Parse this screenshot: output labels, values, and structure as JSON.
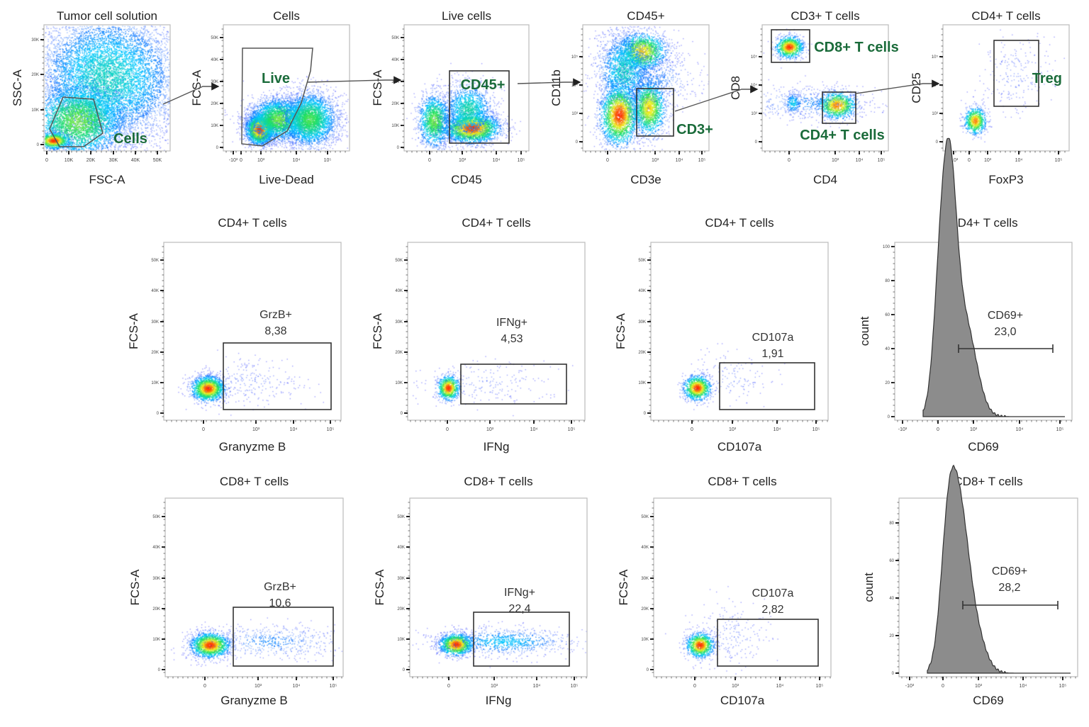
{
  "chart_data": [
    {
      "type": "scatter",
      "title": "Tumor cell solution",
      "xlabel": "FSC-A",
      "ylabel": "SSC-A",
      "xticks": [
        "0",
        "10K",
        "20K",
        "30K",
        "40K",
        "50K"
      ],
      "yticks": [
        "0",
        "10K",
        "20K",
        "30K"
      ],
      "gates": [
        {
          "label": "Cells"
        }
      ]
    },
    {
      "type": "scatter",
      "title": "Cells",
      "xlabel": "Live-Dead",
      "ylabel": "FCS-A",
      "xticks": [
        "-10³",
        "0",
        "10³",
        "10⁴",
        "10⁵"
      ],
      "yticks": [
        "0",
        "10K",
        "20K",
        "30K",
        "40K",
        "50K"
      ],
      "gates": [
        {
          "label": "Live"
        }
      ]
    },
    {
      "type": "scatter",
      "title": "Live cells",
      "xlabel": "CD45",
      "ylabel": "FCS-A",
      "xticks": [
        "0",
        "10³",
        "10⁴",
        "10⁵"
      ],
      "yticks": [
        "0",
        "10K",
        "20K",
        "30K",
        "40K",
        "50K"
      ],
      "gates": [
        {
          "label": "CD45+"
        }
      ]
    },
    {
      "type": "scatter",
      "title": "CD45+",
      "xlabel": "CD3e",
      "ylabel": "CD11b",
      "xticks": [
        "0",
        "10³",
        "10⁴",
        "10⁵"
      ],
      "yticks": [
        "0",
        "10³",
        "10⁴",
        "10⁵"
      ],
      "gates": [
        {
          "label": "CD3+"
        }
      ]
    },
    {
      "type": "scatter",
      "title": "CD3+ T cells",
      "xlabel": "CD4",
      "ylabel": "CD8",
      "xticks": [
        "0",
        "10³",
        "10⁴",
        "10⁵"
      ],
      "yticks": [
        "0",
        "10³",
        "10⁴",
        "10⁵"
      ],
      "gates": [
        {
          "label": "CD8+ T cells"
        },
        {
          "label": "CD4+ T cells"
        }
      ]
    },
    {
      "type": "scatter",
      "title": "CD4+ T cells",
      "xlabel": "FoxP3",
      "ylabel": "CD25",
      "xticks": [
        "-10³",
        "0",
        "10³",
        "10⁴",
        "10⁵"
      ],
      "yticks": [
        "0",
        "10³",
        "10⁴",
        "10⁵"
      ],
      "gates": [
        {
          "label": "Treg"
        }
      ]
    },
    {
      "type": "scatter",
      "title": "CD4+ T cells",
      "xlabel": "Granyzme B",
      "ylabel": "FCS-A",
      "xticks": [
        "0",
        "10³",
        "10⁴",
        "10⁵"
      ],
      "yticks": [
        "0",
        "10K",
        "20K",
        "30K",
        "40K",
        "50K"
      ],
      "gates": [
        {
          "label": "GrzB+",
          "value": "8,38"
        }
      ]
    },
    {
      "type": "scatter",
      "title": "CD4+ T cells",
      "xlabel": "IFNg",
      "ylabel": "FCS-A",
      "xticks": [
        "0",
        "10³",
        "10⁴",
        "10⁵"
      ],
      "yticks": [
        "0",
        "10K",
        "20K",
        "30K",
        "40K",
        "50K"
      ],
      "gates": [
        {
          "label": "IFNg+",
          "value": "4,53"
        }
      ]
    },
    {
      "type": "scatter",
      "title": "CD4+ T cells",
      "xlabel": "CD107a",
      "ylabel": "FCS-A",
      "xticks": [
        "0",
        "10³",
        "10⁴",
        "10⁵"
      ],
      "yticks": [
        "0",
        "10K",
        "20K",
        "30K",
        "40K",
        "50K"
      ],
      "gates": [
        {
          "label": "CD107a",
          "value": "1,91"
        }
      ]
    },
    {
      "type": "histogram",
      "title": "CD4+ T cells",
      "xlabel": "CD69",
      "ylabel": "count",
      "xticks": [
        "-10³",
        "0",
        "10³",
        "10⁴",
        "10⁵"
      ],
      "yticks": [
        "0",
        "20",
        "40",
        "60",
        "80",
        "100"
      ],
      "ylim": [
        0,
        100
      ],
      "gates": [
        {
          "label": "CD69+",
          "value": "23,0"
        }
      ]
    },
    {
      "type": "scatter",
      "title": "CD8+ T cells",
      "xlabel": "Granyzme B",
      "ylabel": "FCS-A",
      "xticks": [
        "0",
        "10³",
        "10⁴",
        "10⁵"
      ],
      "yticks": [
        "0",
        "10K",
        "20K",
        "30K",
        "40K",
        "50K"
      ],
      "gates": [
        {
          "label": "GrzB+",
          "value": "10,6"
        }
      ]
    },
    {
      "type": "scatter",
      "title": "CD8+ T cells",
      "xlabel": "IFNg",
      "ylabel": "FCS-A",
      "xticks": [
        "0",
        "10³",
        "10⁴",
        "10⁵"
      ],
      "yticks": [
        "0",
        "10K",
        "20K",
        "30K",
        "40K",
        "50K"
      ],
      "gates": [
        {
          "label": "IFNg+",
          "value": "22,4"
        }
      ]
    },
    {
      "type": "scatter",
      "title": "CD8+ T cells",
      "xlabel": "CD107a",
      "ylabel": "FCS-A",
      "xticks": [
        "0",
        "10³",
        "10⁴",
        "10⁵"
      ],
      "yticks": [
        "0",
        "10K",
        "20K",
        "30K",
        "40K",
        "50K"
      ],
      "gates": [
        {
          "label": "CD107a",
          "value": "2,82"
        }
      ]
    },
    {
      "type": "histogram",
      "title": "CD8+ T cells",
      "xlabel": "CD69",
      "ylabel": "count",
      "xticks": [
        "-10³",
        "0",
        "10³",
        "10⁴",
        "10⁵"
      ],
      "yticks": [
        "0",
        "20",
        "40",
        "60",
        "80"
      ],
      "ylim": [
        0,
        90
      ],
      "gates": [
        {
          "label": "CD69+",
          "value": "28,2"
        }
      ]
    }
  ],
  "colors": {
    "gate_label_top": "#1a6b3a",
    "gate": "#333333",
    "histogram_fill": "#8c8c8c",
    "density_scale": [
      "#2a2aff",
      "#00c8ff",
      "#20e060",
      "#f0f020",
      "#ff2a00"
    ]
  }
}
